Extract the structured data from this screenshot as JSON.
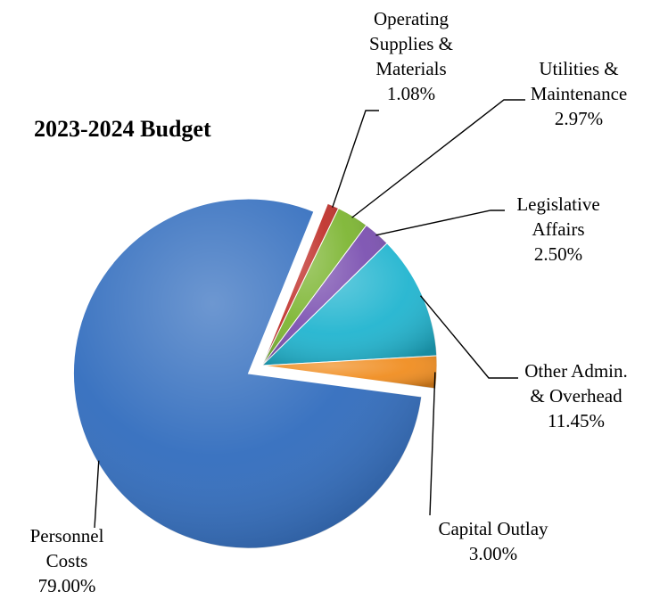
{
  "chart_data": {
    "type": "pie",
    "title": "2023-2024 Budget",
    "slices": [
      {
        "label_lines": [
          "Operating",
          "Supplies &",
          "Materials"
        ],
        "value_label": "1.08%",
        "value": 1.08,
        "color": "#c0302a"
      },
      {
        "label_lines": [
          "Utilities &",
          "Maintenance"
        ],
        "value_label": "2.97%",
        "value": 2.97,
        "color": "#7cb531"
      },
      {
        "label_lines": [
          "Legislative",
          "Affairs"
        ],
        "value_label": "2.50%",
        "value": 2.5,
        "color": "#7a4fb0"
      },
      {
        "label_lines": [
          "Other Admin.",
          "& Overhead"
        ],
        "value_label": "11.45%",
        "value": 11.45,
        "color": "#1fb4cf"
      },
      {
        "label_lines": [
          "Capital Outlay"
        ],
        "value_label": "3.00%",
        "value": 3.0,
        "color": "#f08c1e"
      },
      {
        "label_lines": [
          "Personnel",
          "Costs"
        ],
        "value_label": "79.00%",
        "value": 79.0,
        "color": "#2f6bbd"
      }
    ]
  }
}
